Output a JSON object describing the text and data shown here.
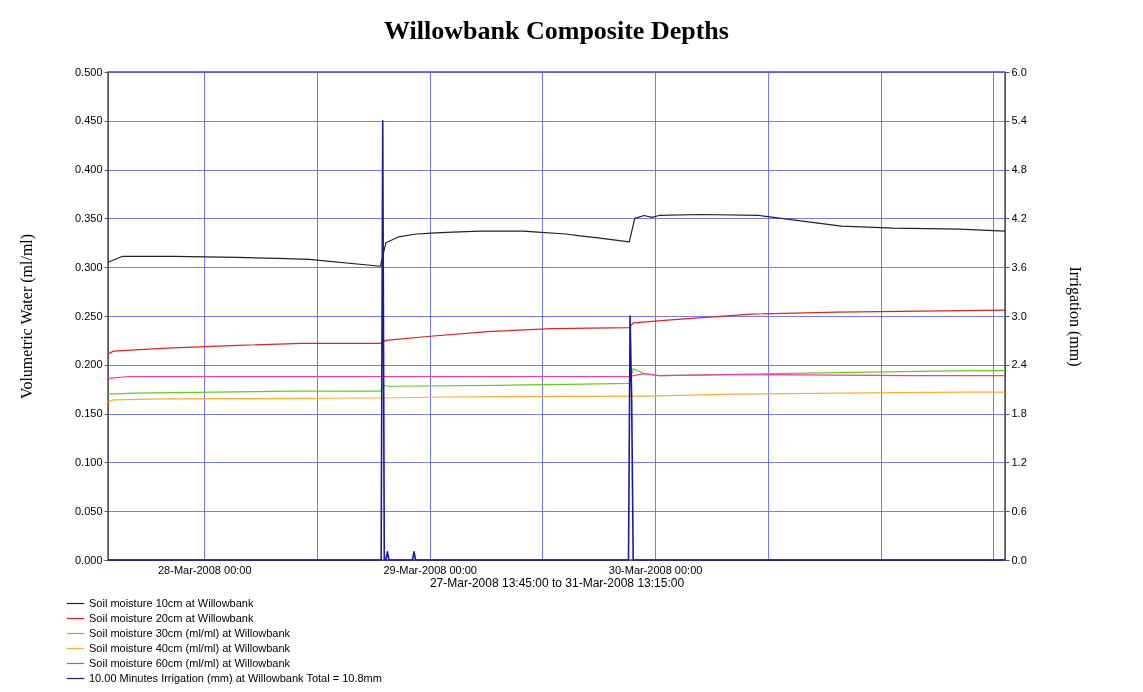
{
  "chart_data": {
    "type": "line",
    "title": "Willowbank Composite Depths",
    "xlabel": "27-Mar-2008 13:45:00 to 31-Mar-2008 13:15:00",
    "ylabel": "Volumetric Water (ml/ml)",
    "y2label": "Irrigation (mm)",
    "xlim": [
      "2008-03-27T13:45",
      "2008-03-31T13:15"
    ],
    "xticks": [
      {
        "value": "2008-03-28T00:00",
        "label": "28-Mar-2008 00:00"
      },
      {
        "value": "2008-03-28T12:00",
        "label": null
      },
      {
        "value": "2008-03-29T00:00",
        "label": "29-Mar-2008 00:00"
      },
      {
        "value": "2008-03-29T12:00",
        "label": null
      },
      {
        "value": "2008-03-30T00:00",
        "label": "30-Mar-2008 00:00"
      },
      {
        "value": "2008-03-30T12:00",
        "label": null
      },
      {
        "value": "2008-03-31T00:00",
        "label": null
      },
      {
        "value": "2008-03-31T12:00",
        "label": null
      }
    ],
    "ylim": [
      0,
      0.5
    ],
    "yticks": [
      {
        "value": 0,
        "label": "0.000"
      },
      {
        "value": 0.05,
        "label": "0.050"
      },
      {
        "value": 0.1,
        "label": "0.100"
      },
      {
        "value": 0.15,
        "label": "0.150"
      },
      {
        "value": 0.2,
        "label": "0.200"
      },
      {
        "value": 0.25,
        "label": "0.250"
      },
      {
        "value": 0.3,
        "label": "0.300"
      },
      {
        "value": 0.35,
        "label": "0.350"
      },
      {
        "value": 0.4,
        "label": "0.400"
      },
      {
        "value": 0.45,
        "label": "0.450"
      },
      {
        "value": 0.5,
        "label": "0.500"
      }
    ],
    "y2lim": [
      0,
      6
    ],
    "y2ticks": [
      {
        "value": 0,
        "label": "0.0"
      },
      {
        "value": 0.6,
        "label": "0.6"
      },
      {
        "value": 1.2,
        "label": "1.2"
      },
      {
        "value": 1.8,
        "label": "1.8"
      },
      {
        "value": 2.4,
        "label": "2.4"
      },
      {
        "value": 3,
        "label": "3.0"
      },
      {
        "value": 3.6,
        "label": "3.6"
      },
      {
        "value": 4.2,
        "label": "4.2"
      },
      {
        "value": 4.8,
        "label": "4.8"
      },
      {
        "value": 5.4,
        "label": "5.4"
      },
      {
        "value": 6,
        "label": "6.0"
      }
    ],
    "grid": true,
    "legend": "bottom",
    "series": [
      {
        "name": "Soil moisture 10cm at Willowbank",
        "color": "#222222",
        "x": [
          "2008-03-27T13:45",
          "2008-03-27T15:15",
          "2008-03-27T20:45",
          "2008-03-28T03:35",
          "2008-03-28T07:55",
          "2008-03-28T11:10",
          "2008-03-28T18:45",
          "2008-03-28T19:20",
          "2008-03-28T20:40",
          "2008-03-28T22:35",
          "2008-03-29T00:10",
          "2008-03-29T02:25",
          "2008-03-29T05:25",
          "2008-03-29T10:00",
          "2008-03-29T11:30",
          "2008-03-29T14:30",
          "2008-03-29T16:00",
          "2008-03-29T17:55",
          "2008-03-29T21:15",
          "2008-03-29T21:50",
          "2008-03-29T22:50",
          "2008-03-29T23:40",
          "2008-03-30T00:25",
          "2008-03-30T04:55",
          "2008-03-30T11:05",
          "2008-03-30T15:05",
          "2008-03-30T19:50",
          "2008-03-31T01:20",
          "2008-03-31T08:25",
          "2008-03-31T13:15"
        ],
        "values": [
          0.305,
          0.311,
          0.311,
          0.31,
          0.309,
          0.308,
          0.301,
          0.325,
          0.331,
          0.334,
          0.335,
          0.336,
          0.337,
          0.337,
          0.336,
          0.334,
          0.332,
          0.33,
          0.326,
          0.35,
          0.353,
          0.351,
          0.353,
          0.354,
          0.353,
          0.348,
          0.342,
          0.34,
          0.339,
          0.337
        ]
      },
      {
        "name": "Soil moisture 20cm at Willowbank",
        "color": "#dd2222",
        "x": [
          "2008-03-27T13:45",
          "2008-03-27T14:20",
          "2008-03-27T20:00",
          "2008-03-28T03:35",
          "2008-03-28T10:25",
          "2008-03-28T18:45",
          "2008-03-28T19:20",
          "2008-03-28T23:45",
          "2008-03-29T06:10",
          "2008-03-29T13:00",
          "2008-03-29T21:15",
          "2008-03-29T21:40",
          "2008-03-30T01:40",
          "2008-03-30T10:15",
          "2008-03-30T19:20",
          "2008-03-31T13:15"
        ],
        "values": [
          0.211,
          0.214,
          0.217,
          0.22,
          0.222,
          0.222,
          0.225,
          0.229,
          0.234,
          0.237,
          0.238,
          0.243,
          0.246,
          0.252,
          0.254,
          0.256
        ]
      },
      {
        "name": "Soil moisture 30cm (ml/ml) at Willowbank",
        "color": "#66cc22",
        "x": [
          "2008-03-27T13:45",
          "2008-03-27T16:35",
          "2008-03-28T01:00",
          "2008-03-28T09:20",
          "2008-03-28T18:45",
          "2008-03-28T19:05",
          "2008-03-28T19:40",
          "2008-03-29T07:20",
          "2008-03-29T14:35",
          "2008-03-29T21:15",
          "2008-03-29T21:40",
          "2008-03-29T22:50",
          "2008-03-30T00:25",
          "2008-03-30T12:40",
          "2008-03-31T02:05",
          "2008-03-31T09:35",
          "2008-03-31T13:15"
        ],
        "values": [
          0.17,
          0.171,
          0.172,
          0.173,
          0.173,
          0.179,
          0.178,
          0.179,
          0.18,
          0.181,
          0.196,
          0.191,
          0.189,
          0.191,
          0.193,
          0.194,
          0.194
        ]
      },
      {
        "name": "Soil moisture 40cm (ml/ml) at Willowbank",
        "color": "#ffaa33",
        "x": [
          "2008-03-27T13:45",
          "2008-03-27T14:20",
          "2008-03-27T19:40",
          "2008-03-28T18:05",
          "2008-03-28T19:00",
          "2008-03-29T01:15",
          "2008-03-29T22:50",
          "2008-03-30T08:30",
          "2008-03-30T19:50",
          "2008-03-31T08:50",
          "2008-03-31T13:15"
        ],
        "values": [
          0.162,
          0.164,
          0.165,
          0.166,
          0.166,
          0.167,
          0.168,
          0.17,
          0.171,
          0.172,
          0.172
        ]
      },
      {
        "name": "Soil moisture 60cm (ml/ml) at Willowbank",
        "color": "#ff33aa",
        "x": [
          "2008-03-27T13:45",
          "2008-03-27T16:00",
          "2008-03-29T21:15",
          "2008-03-29T22:50",
          "2008-03-30T00:25",
          "2008-03-30T08:20",
          "2008-03-31T03:15",
          "2008-03-31T13:15"
        ],
        "values": [
          0.186,
          0.188,
          0.188,
          0.191,
          0.189,
          0.19,
          0.189,
          0.189
        ]
      },
      {
        "name": "10.00 Minutes Irrigation (mm) at Willowbank    Total = 10.8mm",
        "color": "#1a1aa0",
        "axis": "y2",
        "x": [
          "2008-03-27T13:45",
          "2008-03-28T18:50",
          "2008-03-28T19:00",
          "2008-03-28T19:10",
          "2008-03-28T19:20",
          "2008-03-28T19:30",
          "2008-03-28T19:40",
          "2008-03-28T22:10",
          "2008-03-28T22:20",
          "2008-03-28T22:30",
          "2008-03-29T21:10",
          "2008-03-29T21:20",
          "2008-03-29T21:30",
          "2008-03-29T21:40",
          "2008-03-31T13:15"
        ],
        "values": [
          0,
          0,
          5.4,
          0,
          0,
          0.1,
          0,
          0,
          0.1,
          0,
          0,
          3.0,
          2.0,
          0,
          0
        ]
      }
    ]
  }
}
